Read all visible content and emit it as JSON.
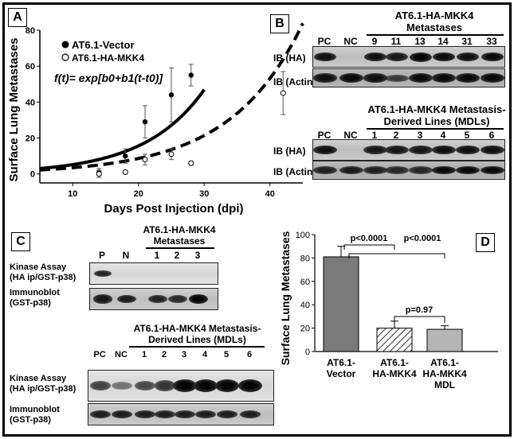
{
  "panelA": {
    "label": "A",
    "ylabel": "Surface Lung Metastases",
    "xlabel": "Days Post Injection (dpi)",
    "legend": [
      {
        "marker": "filled-circle",
        "text": "AT6.1-Vector"
      },
      {
        "marker": "open-circle",
        "text": "AT6.1-HA-MKK4"
      }
    ],
    "formula": "f(t)= exp[b0+b1(t-t0)]"
  },
  "chart_data": [
    {
      "type": "scatter",
      "panel": "A",
      "xlabel": "Days Post Injection (dpi)",
      "ylabel": "Surface Lung Metastases",
      "xlim": [
        5,
        45
      ],
      "ylim": [
        -5,
        80
      ],
      "xticks": [
        10,
        20,
        30,
        40
      ],
      "yticks": [
        0,
        20,
        40,
        60,
        80
      ],
      "series": [
        {
          "name": "AT6.1-Vector",
          "marker": "filled",
          "points": [
            {
              "x": 14,
              "y": 1,
              "err": 2
            },
            {
              "x": 18,
              "y": 10,
              "err": 4
            },
            {
              "x": 21,
              "y": 29,
              "err": 9
            },
            {
              "x": 25,
              "y": 44,
              "err": 15
            },
            {
              "x": 28,
              "y": 55,
              "err": 6
            }
          ],
          "fit": {
            "style": "solid",
            "b": 0.11,
            "t0": 5,
            "a": 3,
            "range": [
              5,
              30
            ]
          }
        },
        {
          "name": "AT6.1-HA-MKK4",
          "marker": "open",
          "points": [
            {
              "x": 14,
              "y": 0,
              "err": 2
            },
            {
              "x": 18,
              "y": 1,
              "err": 1
            },
            {
              "x": 21,
              "y": 8,
              "err": 3
            },
            {
              "x": 25,
              "y": 11,
              "err": 3
            },
            {
              "x": 28,
              "y": 6,
              "err": 1
            },
            {
              "x": 42,
              "y": 45,
              "err": 12
            }
          ],
          "fit": {
            "style": "dashed",
            "b": 0.091,
            "t0": 5,
            "a": 2.2,
            "range": [
              5,
              45
            ]
          }
        }
      ]
    },
    {
      "type": "bar",
      "panel": "D",
      "ylabel": "Surface Lung Metastases",
      "categories": [
        "AT6.1-\nVector",
        "AT6.1-\nHA-MKK4",
        "AT6.1-\nHA-MKK4\nMDL"
      ],
      "values": [
        81,
        20,
        19
      ],
      "errors": [
        9,
        6,
        3
      ],
      "ylim": [
        0,
        100
      ],
      "yticks": [
        0,
        20,
        40,
        60,
        80,
        100
      ],
      "annotations": [
        {
          "text": "p<0.0001",
          "from": 0,
          "to": 1
        },
        {
          "text": "p<0.0001",
          "from": 0,
          "to": 2
        },
        {
          "text": "p=0.97",
          "from": 1,
          "to": 2
        }
      ],
      "colors": [
        "#7a7a7a",
        "hatched",
        "#b5b5b5"
      ]
    }
  ],
  "panelB": {
    "label": "B",
    "top_title_line1": "AT6.1-HA-MKK4",
    "top_title_line2": "Metastases",
    "top_lanes": [
      "PC",
      "NC",
      "9",
      "11",
      "13",
      "14",
      "31",
      "33"
    ],
    "bottom_title_line1": "AT6.1-HA-MKK4 Metastasis-",
    "bottom_title_line2": "Derived Lines (MDLs)",
    "bottom_lanes": [
      "PC",
      "NC",
      "1",
      "2",
      "3",
      "4",
      "5",
      "6"
    ],
    "row_ha_top": "IB   (HA)",
    "row_actin_top": "IB (Actin)",
    "row_ha_bottom": "IB     (HA)",
    "row_actin_bottom": "IB (Actin)"
  },
  "panelC": {
    "label": "C",
    "top_title_line1": "AT6.1-HA-MKK4",
    "top_title_line2": "Metastases",
    "top_lanes": [
      "P",
      "N",
      "1",
      "2",
      "3"
    ],
    "bottom_title_line1": "AT6.1-HA-MKK4 Metastasis-",
    "bottom_title_line2": "Derived Lines (MDLs)",
    "bottom_lanes": [
      "PC",
      "NC",
      "1",
      "2",
      "3",
      "4",
      "5",
      "6"
    ],
    "kinase_line1": "Kinase Assay",
    "kinase_line2": "(HA ip/GST-p38)",
    "immuno_line1": "Immunoblot",
    "immuno_line2": "(GST-p38)"
  },
  "panelD": {
    "label": "D",
    "ylabel": "Surface Lung Metastases"
  }
}
